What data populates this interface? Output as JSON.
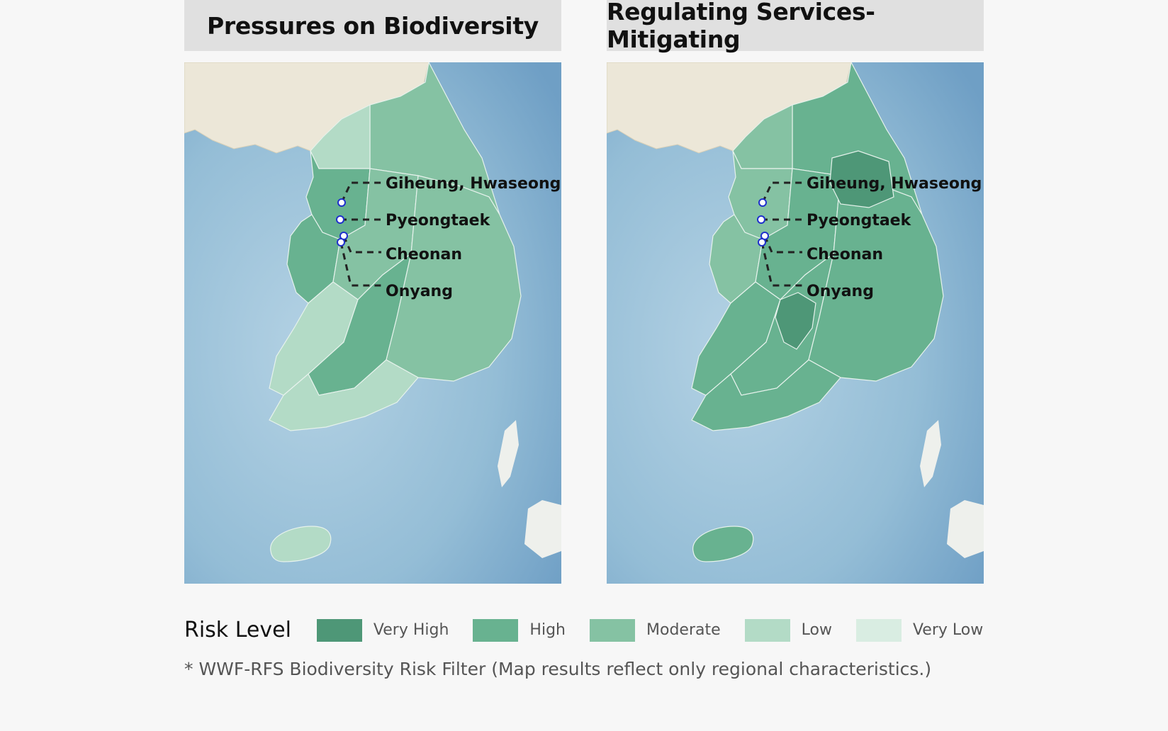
{
  "panels": [
    {
      "title": "Pressures on Biodiversity",
      "sites": [
        {
          "name": "Giheung, Hwaseong"
        },
        {
          "name": "Pyeongtaek"
        },
        {
          "name": "Cheonan"
        },
        {
          "name": "Onyang"
        }
      ],
      "region_levels": {
        "north": "Moderate",
        "northwest": "Low",
        "gyeonggi": "High",
        "west": "High",
        "central": "Moderate",
        "southwest": "Low",
        "south": "High",
        "east": "Moderate",
        "southcoast": "Low",
        "jeju": "Low"
      }
    },
    {
      "title": "Regulating Services-Mitigating",
      "sites": [
        {
          "name": "Giheung, Hwaseong"
        },
        {
          "name": "Pyeongtaek"
        },
        {
          "name": "Cheonan"
        },
        {
          "name": "Onyang"
        }
      ],
      "region_levels": {
        "north": "High",
        "northwest": "Moderate",
        "gyeonggi": "Moderate",
        "west": "Moderate",
        "central": "High",
        "southwest": "High",
        "south": "High",
        "east": "High",
        "southcoast": "High",
        "jeju": "High",
        "hotspot1": "Very High",
        "hotspot2": "Very High"
      }
    }
  ],
  "legend": {
    "title": "Risk Level",
    "items": [
      {
        "label": "Very High",
        "color": "#4e9777"
      },
      {
        "label": "High",
        "color": "#68b290"
      },
      {
        "label": "Moderate",
        "color": "#85c2a3"
      },
      {
        "label": "Low",
        "color": "#b3dbc6"
      },
      {
        "label": "Very Low",
        "color": "#d9ede2"
      }
    ]
  },
  "footnote": "* WWF-RFS Biodiversity Risk Filter (Map results reflect only regional characteristics.)"
}
